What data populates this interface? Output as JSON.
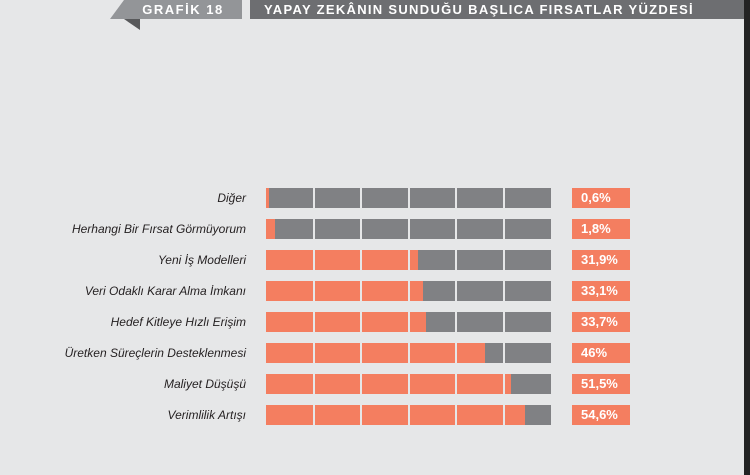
{
  "header": {
    "tag": "GRAFİK 18",
    "title": "YAPAY ZEKÂNIN SUNDUĞU BAŞLICA FIRSATLAR YÜZDESİ"
  },
  "colors": {
    "fill": "#f47e60",
    "track": "#808184",
    "background": "#e6e7e8"
  },
  "chart_data": {
    "type": "bar",
    "orientation": "horizontal",
    "title": "YAPAY ZEKÂNIN SUNDUĞU BAŞLICA FIRSATLAR YÜZDESİ",
    "xlim": [
      0,
      60
    ],
    "grid_step": 10,
    "categories": [
      "Diğer",
      "Herhangi Bir Fırsat Görmüyorum",
      "Yeni İş Modelleri",
      "Veri Odaklı Karar Alma İmkanı",
      "Hedef Kitleye Hızlı Erişim",
      "Üretken Süreçlerin Desteklenmesi",
      "Maliyet Düşüşü",
      "Verimlilik Artışı"
    ],
    "values": [
      0.6,
      1.8,
      31.9,
      33.1,
      33.7,
      46,
      51.5,
      54.6
    ],
    "labels": [
      "0,6%",
      "1,8%",
      "31,9%",
      "33,1%",
      "33,7%",
      "46%",
      "51,5%",
      "54,6%"
    ]
  }
}
